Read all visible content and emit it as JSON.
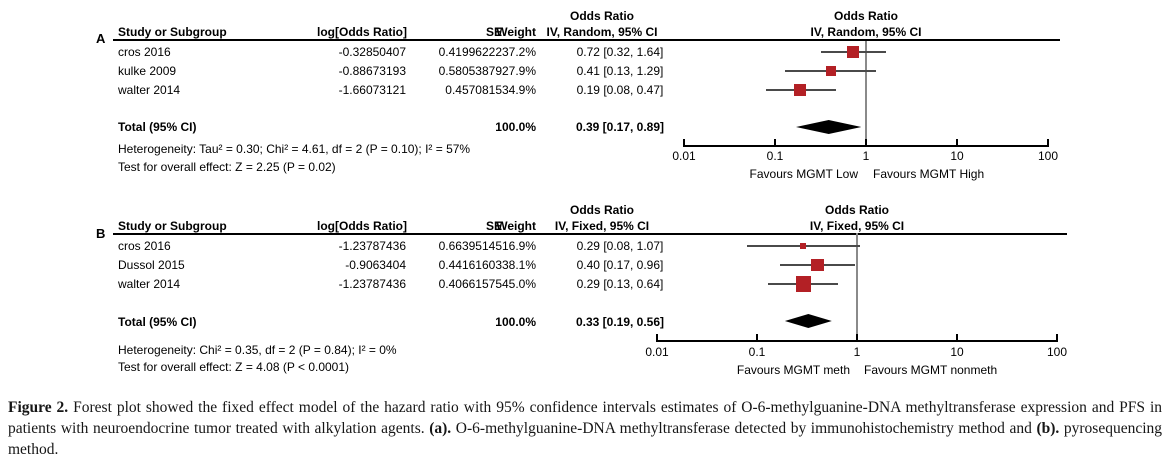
{
  "colors": {
    "marker_red": "#b32025",
    "summary_diamond": "#000000",
    "ci_line": "#4a4a4a",
    "null_line": "#8a8a8a",
    "axis": "#000000",
    "text": "#000000"
  },
  "chart_data": [
    {
      "type": "forest",
      "panel_label": "A",
      "columns": {
        "study": "Study or Subgroup",
        "log_or": "log[Odds Ratio]",
        "se": "SE",
        "weight": "Weight",
        "effect_title": "Odds Ratio",
        "effect": "IV, Random, 95% CI"
      },
      "plot_header": {
        "line1": "Odds Ratio",
        "line2": "IV, Random, 95% CI"
      },
      "x_scale": "log",
      "x_range": [
        0.01,
        100
      ],
      "x_ticks": [
        "0.01",
        "0.1",
        "1",
        "10",
        "100"
      ],
      "studies": [
        {
          "name": "cros 2016",
          "log_or": "-0.32850407",
          "se": "0.41996222",
          "weight": "37.2%",
          "weight_pct": 37.2,
          "estimate_label": "0.72 [0.32, 1.64]",
          "or": 0.72,
          "ci_low": 0.32,
          "ci_high": 1.64
        },
        {
          "name": "kulke 2009",
          "log_or": "-0.88673193",
          "se": "0.58053879",
          "weight": "27.9%",
          "weight_pct": 27.9,
          "estimate_label": "0.41 [0.13, 1.29]",
          "or": 0.41,
          "ci_low": 0.13,
          "ci_high": 1.29
        },
        {
          "name": "walter 2014",
          "log_or": "-1.66073121",
          "se": "0.4570815",
          "weight": "34.9%",
          "weight_pct": 34.9,
          "estimate_label": "0.19 [0.08, 0.47]",
          "or": 0.19,
          "ci_low": 0.08,
          "ci_high": 0.47
        }
      ],
      "total": {
        "label": "Total (95% CI)",
        "weight": "100.0%",
        "estimate_label": "0.39 [0.17, 0.89]",
        "or": 0.39,
        "ci_low": 0.17,
        "ci_high": 0.89
      },
      "heterogeneity": "Heterogeneity: Tau² = 0.30; Chi² = 4.61, df = 2 (P = 0.10); I² = 57%",
      "overall_effect": "Test for overall effect: Z = 2.25 (P = 0.02)",
      "favours_left": "Favours MGMT Low",
      "favours_right": "Favours MGMT High"
    },
    {
      "type": "forest",
      "panel_label": "B",
      "columns": {
        "study": "Study or Subgroup",
        "log_or": "log[Odds Ratio]",
        "se": "SE",
        "weight": "Weight",
        "effect_title": "Odds Ratio",
        "effect": "IV, Fixed, 95% CI"
      },
      "plot_header": {
        "line1": "Odds Ratio",
        "line2": "IV, Fixed, 95% CI"
      },
      "x_scale": "log",
      "x_range": [
        0.01,
        100
      ],
      "x_ticks": [
        "0.01",
        "0.1",
        "1",
        "10",
        "100"
      ],
      "studies": [
        {
          "name": "cros 2016",
          "log_or": "-1.23787436",
          "se": "0.66395145",
          "weight": "16.9%",
          "weight_pct": 16.9,
          "estimate_label": "0.29 [0.08, 1.07]",
          "or": 0.29,
          "ci_low": 0.08,
          "ci_high": 1.07
        },
        {
          "name": "Dussol 2015",
          "log_or": "-0.9063404",
          "se": "0.44161603",
          "weight": "38.1%",
          "weight_pct": 38.1,
          "estimate_label": "0.40 [0.17, 0.96]",
          "or": 0.4,
          "ci_low": 0.17,
          "ci_high": 0.96
        },
        {
          "name": "walter 2014",
          "log_or": "-1.23787436",
          "se": "0.40661575",
          "weight": "45.0%",
          "weight_pct": 45.0,
          "estimate_label": "0.29 [0.13, 0.64]",
          "or": 0.29,
          "ci_low": 0.13,
          "ci_high": 0.64
        }
      ],
      "total": {
        "label": "Total (95% CI)",
        "weight": "100.0%",
        "estimate_label": "0.33 [0.19, 0.56]",
        "or": 0.33,
        "ci_low": 0.19,
        "ci_high": 0.56
      },
      "heterogeneity": "Heterogeneity: Chi² = 0.35, df = 2 (P = 0.84); I² = 0%",
      "overall_effect": "Test for overall effect: Z = 4.08 (P < 0.0001)",
      "favours_left": "Favours MGMT meth",
      "favours_right": "Favours MGMT nonmeth"
    }
  ],
  "caption": {
    "segments": [
      {
        "text": "Figure 2. ",
        "bold": true
      },
      {
        "text": "Forest plot showed the fixed effect model of the hazard ratio with 95% confidence intervals estimates of O-6-methylguanine-DNA methyltransferase expression and PFS in patients with neuroendocrine tumor treated with alkylation agents. ",
        "bold": false
      },
      {
        "text": "(a). ",
        "bold": true
      },
      {
        "text": "O-6-methylguanine-DNA methyltransferase detected by immunohistochemistry method  and ",
        "bold": false
      },
      {
        "text": "(b). ",
        "bold": true
      },
      {
        "text": "pyrosequencing method.",
        "bold": false
      }
    ]
  }
}
